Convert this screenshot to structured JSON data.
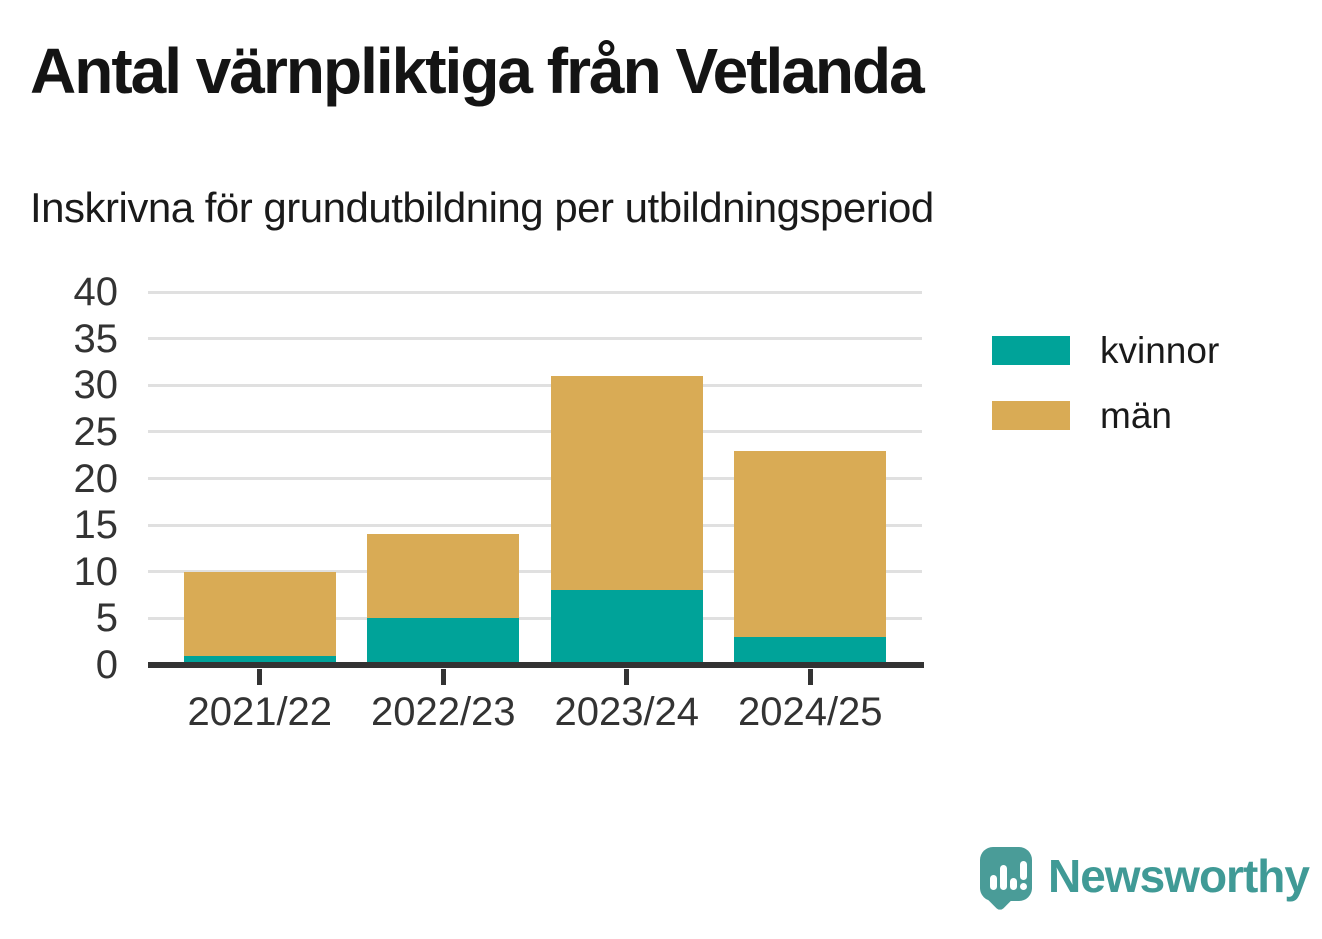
{
  "title": "Antal värnpliktiga från Vetlanda",
  "subtitle": "Inskrivna för grundutbildning per utbildningsperiod",
  "chart_data": {
    "type": "bar",
    "stacked": true,
    "title": "Antal värnpliktiga från Vetlanda",
    "subtitle": "Inskrivna för grundutbildning per utbildningsperiod",
    "categories": [
      "2021/22",
      "2022/23",
      "2023/24",
      "2024/25"
    ],
    "series": [
      {
        "name": "kvinnor",
        "color": "#00a399",
        "values": [
          1,
          5,
          8,
          3
        ]
      },
      {
        "name": "män",
        "color": "#d9ab55",
        "values": [
          9,
          9,
          23,
          20
        ]
      }
    ],
    "totals": [
      10,
      14,
      31,
      23
    ],
    "xlabel": "",
    "ylabel": "",
    "ylim": [
      0,
      40
    ],
    "yticks": [
      0,
      5,
      10,
      15,
      20,
      25,
      30,
      35,
      40
    ],
    "grid": "horizontal",
    "gridline_color": "#e0e0e0",
    "axis_color": "#333333",
    "legend_position": "right"
  },
  "footer": {
    "brand": "Newsworthy",
    "brand_color": "#409a96"
  }
}
